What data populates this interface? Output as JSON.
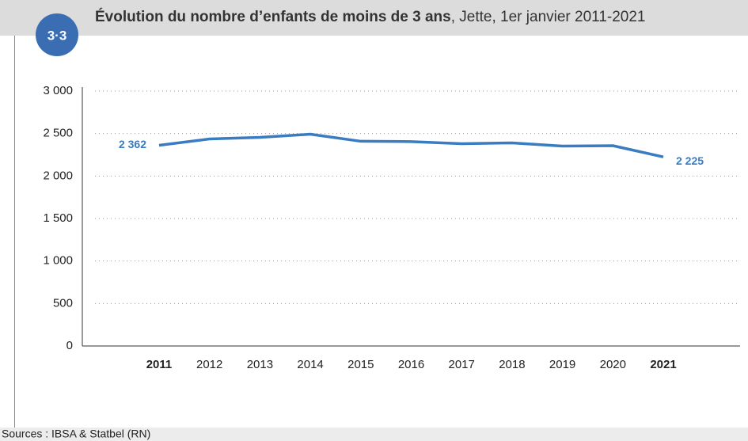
{
  "chart_data": {
    "type": "line",
    "badge": "3·3",
    "title": "Évolution du nombre d’enfants de moins de 3 ans",
    "subtitle": ", Jette, 1er janvier 2011-2021",
    "source": "Sources : IBSA & Statbel (RN)",
    "categories": [
      "2011",
      "2012",
      "2013",
      "2014",
      "2015",
      "2016",
      "2017",
      "2018",
      "2019",
      "2020",
      "2021"
    ],
    "bold_categories": [
      0,
      10
    ],
    "series": [
      {
        "name": "Enfants de moins de 3 ans",
        "color": "#3a7cc1",
        "values": [
          2362,
          2436,
          2455,
          2492,
          2409,
          2405,
          2380,
          2390,
          2353,
          2357,
          2225
        ],
        "value_labels": [
          "2 362",
          null,
          null,
          null,
          null,
          null,
          null,
          null,
          null,
          null,
          "2 225"
        ]
      }
    ],
    "ylim": [
      0,
      3000
    ],
    "yticks": [
      0,
      500,
      {
        "value": 1000,
        "label": "1 000"
      },
      {
        "value": 1500,
        "label": "1 500"
      },
      {
        "value": 2000,
        "label": "2 000"
      },
      {
        "value": 2500,
        "label": "2 500"
      },
      {
        "value": 3000,
        "label": "3 000"
      }
    ],
    "grid": true
  }
}
